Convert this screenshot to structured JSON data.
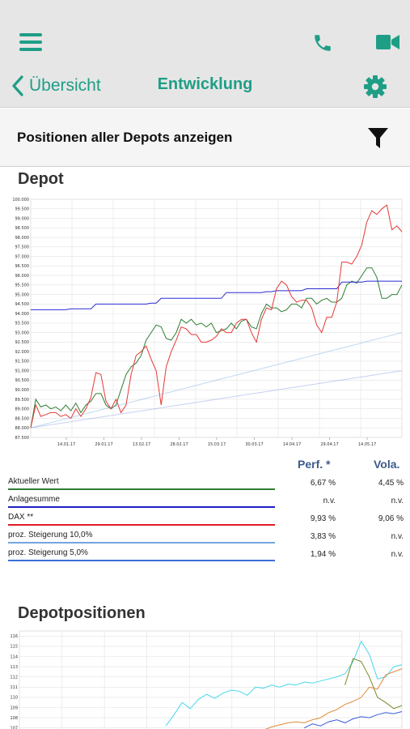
{
  "header": {
    "back_label": "Übersicht",
    "title": "Entwicklung",
    "icons": [
      "menu-icon",
      "phone-icon",
      "video-icon",
      "gear-icon"
    ]
  },
  "filter": {
    "label": "Positionen aller Depots anzeigen",
    "icon": "filter-icon"
  },
  "depot": {
    "title": "Depot",
    "chart_data": {
      "type": "line",
      "y_ticks": [
        "100.000",
        "99.500",
        "99.000",
        "98.500",
        "98.000",
        "97.500",
        "97.000",
        "96.500",
        "96.000",
        "95.500",
        "95.000",
        "94.500",
        "94.000",
        "93.500",
        "93.000",
        "92.500",
        "92.000",
        "91.500",
        "91.000",
        "90.500",
        "90.000",
        "89.500",
        "89.000",
        "88.500",
        "88.000",
        "87.500"
      ],
      "x_ticks": [
        "14.01.17",
        "29.01.17",
        "13.02.17",
        "28.02.17",
        "15.03.17",
        "30.03.17",
        "14.04.17",
        "29.04.17",
        "14.05.17"
      ],
      "ylim": [
        87500,
        100000
      ],
      "series": [
        {
          "name": "Aktueller Wert",
          "color": "#2e7d32",
          "values": [
            88000,
            89500,
            89100,
            89200,
            89000,
            89100,
            88900,
            89200,
            88900,
            89300,
            88800,
            89200,
            89400,
            89800,
            89800,
            89200,
            89000,
            89200,
            90000,
            90800,
            91200,
            91400,
            91800,
            92600,
            93000,
            93400,
            93300,
            92700,
            92600,
            93000,
            93700,
            93500,
            93700,
            93400,
            93500,
            93300,
            93500,
            93000,
            93100,
            93200,
            93500,
            93200,
            93600,
            93700,
            93300,
            93200,
            94000,
            94500,
            94300,
            94300,
            94100,
            94200,
            94500,
            94500,
            94300,
            94800,
            94800,
            94500,
            94700,
            94800,
            94600,
            94600,
            94800,
            95500,
            95700,
            95600,
            96000,
            96400,
            96400,
            95900,
            94800,
            94800,
            95000,
            95000,
            95500
          ]
        },
        {
          "name": "Anlagesumme",
          "color": "#2b2bd4",
          "values": [
            94200,
            94200,
            94200,
            94200,
            94200,
            94200,
            94200,
            94200,
            94250,
            94250,
            94250,
            94250,
            94250,
            94500,
            94500,
            94500,
            94500,
            94500,
            94500,
            94500,
            94500,
            94500,
            94500,
            94500,
            94550,
            94550,
            94800,
            94800,
            94800,
            94800,
            94800,
            94800,
            94800,
            94800,
            94800,
            94800,
            94800,
            94800,
            94800,
            95100,
            95100,
            95100,
            95100,
            95100,
            95100,
            95100,
            95100,
            95150,
            95150,
            95200,
            95200,
            95200,
            95200,
            95200,
            95200,
            95300,
            95300,
            95300,
            95300,
            95300,
            95300,
            95300,
            95650,
            95650,
            95650,
            95650,
            95650,
            95700,
            95700,
            95700,
            95700,
            95700,
            95700,
            95700,
            95700
          ]
        },
        {
          "name": "DAX **",
          "color": "#e53935",
          "values": [
            88000,
            89200,
            88600,
            88700,
            88800,
            88800,
            88600,
            88700,
            88500,
            89000,
            88600,
            89000,
            89600,
            90900,
            90800,
            89400,
            89000,
            89500,
            88800,
            89200,
            90800,
            91800,
            92000,
            92300,
            91600,
            91000,
            89200,
            91200,
            92000,
            92600,
            93300,
            93200,
            92900,
            92900,
            92500,
            92500,
            92600,
            92800,
            93200,
            93000,
            93000,
            93500,
            93700,
            93700,
            93000,
            92500,
            93700,
            94300,
            94200,
            95300,
            95700,
            95500,
            94900,
            94600,
            94700,
            94700,
            94300,
            93400,
            93000,
            93800,
            93800,
            94600,
            96700,
            96700,
            96600,
            97000,
            97600,
            98800,
            99400,
            99200,
            99500,
            99700,
            98400,
            98600,
            98300
          ]
        },
        {
          "name": "proz. Steigerung 10,0%",
          "color": "#74a6e0",
          "values": [
            88000,
            88100,
            88200,
            88300,
            88400,
            88500,
            88600,
            88700,
            88800,
            88900,
            89000,
            89100,
            89200,
            89300,
            89400,
            89500,
            89600,
            89700,
            89800,
            89900,
            90000,
            90100,
            90200,
            90300,
            90400,
            90500,
            90600,
            90700,
            90800,
            90900,
            91000,
            91100,
            91200,
            91300,
            91400,
            91500,
            91600,
            91700,
            91800,
            91900,
            92000,
            92100,
            92200,
            92300,
            92400,
            92500,
            92600,
            92700,
            92800,
            92900,
            93000
          ]
        },
        {
          "name": "proz. Steigerung 5,0%",
          "color": "#5b7fd8",
          "values": [
            88000,
            88060,
            88120,
            88180,
            88240,
            88300,
            88360,
            88420,
            88480,
            88540,
            88600,
            88660,
            88720,
            88780,
            88840,
            88900,
            88960,
            89020,
            89080,
            89140,
            89200,
            89260,
            89320,
            89380,
            89440,
            89500,
            89560,
            89620,
            89680,
            89740,
            89800,
            89860,
            89920,
            89980,
            90040,
            90100,
            90160,
            90220,
            90280,
            90340,
            90400,
            90460,
            90520,
            90580,
            90640,
            90700,
            90760,
            90820,
            90880,
            90940,
            91000
          ]
        }
      ]
    },
    "legend": {
      "perf_header": "Perf. *",
      "vola_header": "Vola.",
      "rows": [
        {
          "label": "Aktueller Wert",
          "perf": "6,67 %",
          "vola": "4,45 %",
          "color": "#2e7d32"
        },
        {
          "label": "Anlagesumme",
          "perf": "n.v.",
          "vola": "n.v.",
          "color": "#1f1fc8"
        },
        {
          "label": "DAX **",
          "perf": "9,93 %",
          "vola": "9,06 %",
          "color": "#e01c24"
        },
        {
          "label": "proz. Steigerung 10,0%",
          "perf": "3,83 %",
          "vola": "n.v.",
          "color": "#74a6e0"
        },
        {
          "label": "proz. Steigerung 5,0%",
          "perf": "1,94 %",
          "vola": "n.v.",
          "color": "#3a6fd8"
        }
      ]
    }
  },
  "positions": {
    "title": "Depotpositionen",
    "chart_data": {
      "type": "line",
      "y_ticks": [
        "116",
        "115",
        "114",
        "113",
        "112",
        "111",
        "110",
        "109",
        "108",
        "107"
      ],
      "ylim": [
        106.5,
        116.5
      ],
      "series": [
        {
          "color": "#47d7ec",
          "values": [
            null,
            null,
            null,
            null,
            null,
            null,
            null,
            null,
            null,
            null,
            null,
            null,
            null,
            null,
            null,
            null,
            null,
            null,
            107.2,
            108.3,
            109.5,
            108.9,
            109.8,
            110.3,
            109.9,
            110.4,
            110.7,
            110.6,
            110.2,
            111.0,
            110.9,
            111.2,
            111.0,
            111.3,
            111.2,
            111.5,
            111.4,
            111.6,
            111.8,
            112.0,
            112.3,
            113.5,
            115.5,
            114.2,
            111.8,
            112.0,
            113.0,
            113.2
          ]
        },
        {
          "color": "#e08a3a",
          "values": [
            null,
            null,
            null,
            null,
            null,
            null,
            null,
            null,
            null,
            null,
            null,
            null,
            null,
            null,
            null,
            null,
            null,
            null,
            null,
            null,
            null,
            null,
            null,
            null,
            null,
            null,
            null,
            null,
            null,
            null,
            106.8,
            107.1,
            107.3,
            107.5,
            107.6,
            107.5,
            107.8,
            108.0,
            108.5,
            108.8,
            109.3,
            109.6,
            110.0,
            111.0,
            110.8,
            112.2,
            112.5,
            112.8
          ]
        },
        {
          "color": "#7a8a2a",
          "values": [
            null,
            null,
            null,
            null,
            null,
            null,
            null,
            null,
            null,
            null,
            null,
            null,
            null,
            null,
            null,
            null,
            null,
            null,
            null,
            null,
            null,
            null,
            null,
            null,
            null,
            null,
            null,
            null,
            null,
            null,
            null,
            null,
            null,
            null,
            null,
            null,
            null,
            null,
            null,
            null,
            111.2,
            113.8,
            113.5,
            112.0,
            110.0,
            109.5,
            108.9,
            109.2
          ]
        },
        {
          "color": "#3b5bdb",
          "values": [
            null,
            null,
            null,
            null,
            null,
            null,
            null,
            null,
            null,
            null,
            null,
            null,
            null,
            null,
            null,
            null,
            null,
            null,
            null,
            null,
            null,
            null,
            null,
            null,
            null,
            null,
            null,
            null,
            null,
            null,
            null,
            null,
            null,
            null,
            null,
            107.0,
            107.4,
            107.2,
            107.6,
            107.8,
            107.5,
            107.9,
            108.1,
            108.0,
            108.3,
            108.5,
            108.4,
            108.6
          ]
        }
      ]
    }
  }
}
